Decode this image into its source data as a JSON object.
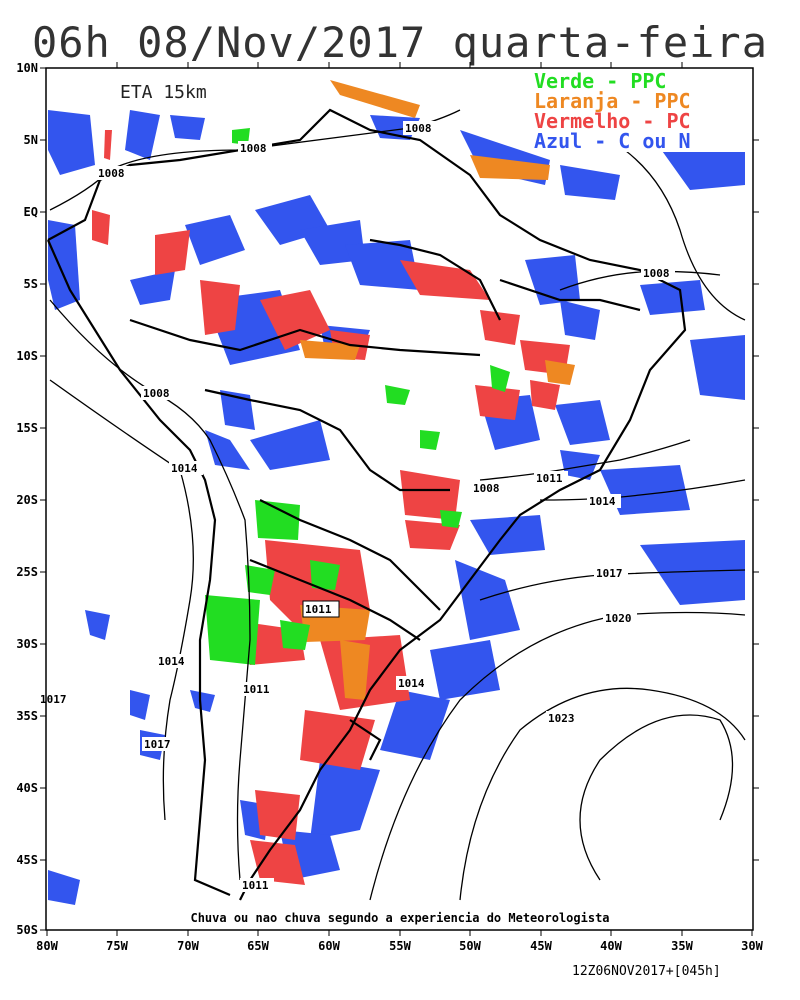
{
  "title": "06h 08/Nov/2017 quarta-feira",
  "model_label": "ETA 15km",
  "caption": "Chuva ou nao chuva segundo a experiencia do Meteorologista",
  "footer": "12Z06NOV2017+[045h]",
  "legend": [
    {
      "label": "Verde - PPC",
      "color": "#22dd22"
    },
    {
      "label": "Laranja - PPC",
      "color": "#ee8822"
    },
    {
      "label": "Vermelho - PC",
      "color": "#ee4444"
    },
    {
      "label": "Azul - C ou N",
      "color": "#3355ee"
    }
  ],
  "lat_labels": [
    "10N",
    "5N",
    "EQ",
    "5S",
    "10S",
    "15S",
    "20S",
    "25S",
    "30S",
    "35S",
    "40S",
    "45S",
    "50S"
  ],
  "lon_labels": [
    "80W",
    "75W",
    "70W",
    "65W",
    "60W",
    "55W",
    "50W",
    "45W",
    "40W",
    "35W",
    "30W"
  ],
  "isobar_labels": [
    "1008",
    "1008",
    "1008",
    "1008",
    "1008",
    "1008",
    "1011",
    "1014",
    "1017",
    "1020",
    "1023",
    "1014",
    "1011",
    "1014",
    "1017",
    "1011",
    "1014",
    "1017",
    "1011"
  ]
}
